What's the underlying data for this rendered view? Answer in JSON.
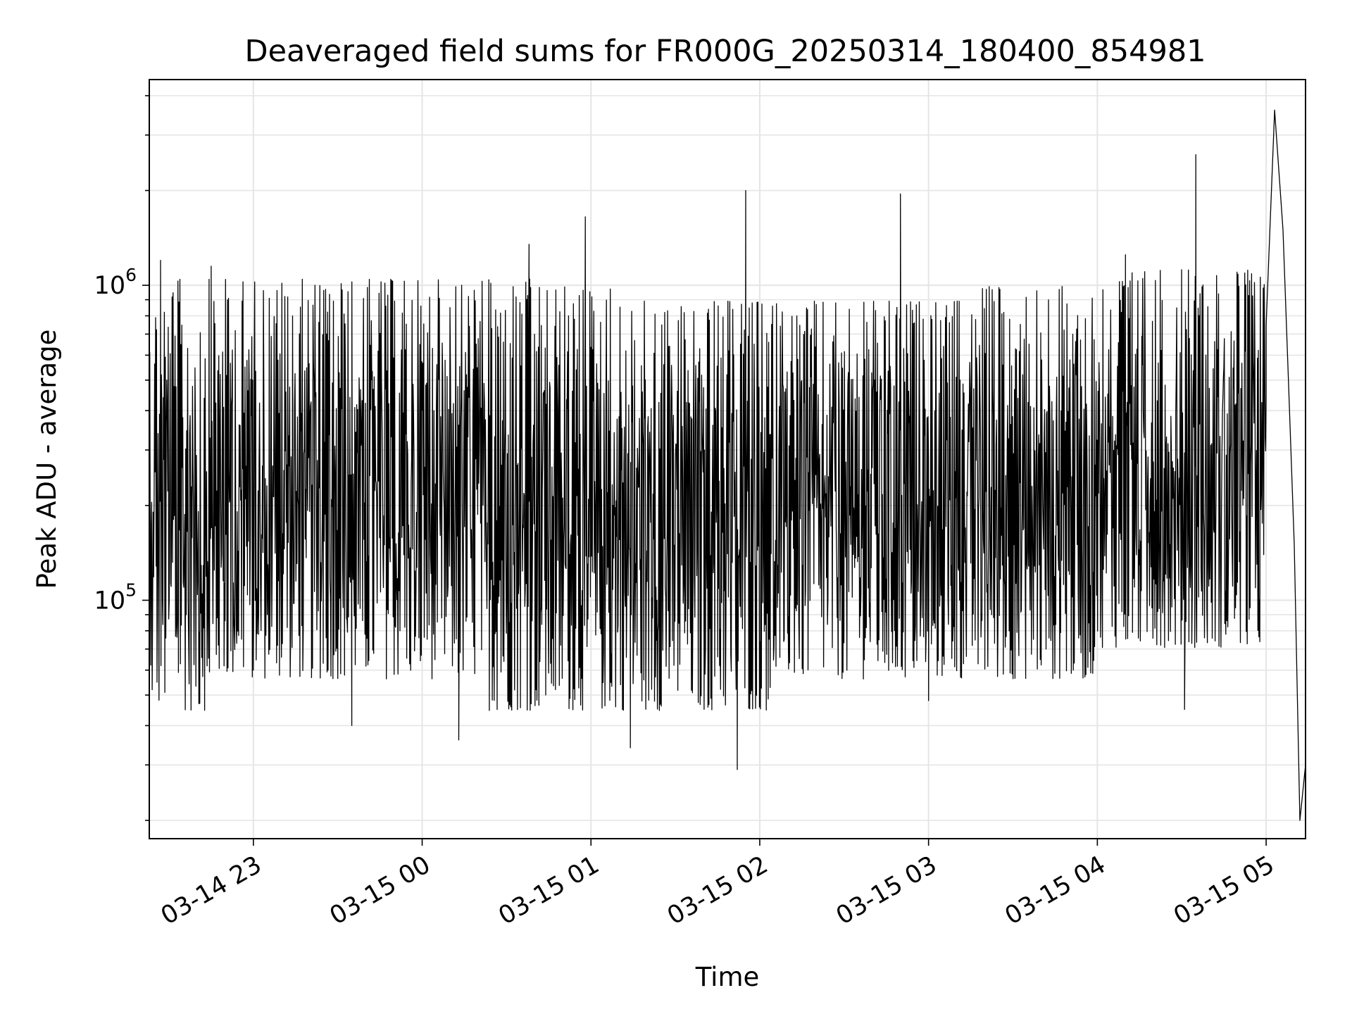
{
  "chart_data": {
    "type": "line",
    "title": "Deaveraged field sums for FR000G_20250314_180400_854981",
    "xlabel": "Time",
    "ylabel": "Peak ADU - average",
    "yscale": "log",
    "ylim": [
      17500,
      4500000
    ],
    "xlim": [
      "2025-03-14 22:23",
      "2025-03-15 05:14"
    ],
    "grid": true,
    "legend": "none",
    "line_color": "#000000",
    "grid_color": "#e5e5e5",
    "x_ticks": [
      {
        "t": "2025-03-14 23:00",
        "label": "03-14 23"
      },
      {
        "t": "2025-03-15 00:00",
        "label": "03-15 00"
      },
      {
        "t": "2025-03-15 01:00",
        "label": "03-15 01"
      },
      {
        "t": "2025-03-15 02:00",
        "label": "03-15 02"
      },
      {
        "t": "2025-03-15 03:00",
        "label": "03-15 03"
      },
      {
        "t": "2025-03-15 04:00",
        "label": "03-15 04"
      },
      {
        "t": "2025-03-15 05:00",
        "label": "03-15 05"
      }
    ],
    "y_ticks": [
      {
        "value": 100000,
        "base": "10",
        "exp": "5"
      },
      {
        "value": 1000000,
        "base": "10",
        "exp": "6"
      }
    ],
    "series": [
      {
        "values_sample": [
          {
            "t": "2025-03-14 22:23",
            "y": 140000
          },
          {
            "t": "2025-03-14 22:27",
            "y": 1200000
          },
          {
            "t": "2025-03-14 22:45",
            "y": 1150000
          },
          {
            "t": "2025-03-14 23:00",
            "y": 60000
          },
          {
            "t": "2025-03-14 23:35",
            "y": 40000
          },
          {
            "t": "2025-03-15 00:13",
            "y": 36000
          },
          {
            "t": "2025-03-15 00:38",
            "y": 1350000
          },
          {
            "t": "2025-03-15 00:58",
            "y": 1650000
          },
          {
            "t": "2025-03-15 01:14",
            "y": 34000
          },
          {
            "t": "2025-03-15 01:52",
            "y": 29000
          },
          {
            "t": "2025-03-15 01:55",
            "y": 2000000
          },
          {
            "t": "2025-03-15 02:50",
            "y": 1950000
          },
          {
            "t": "2025-03-15 03:00",
            "y": 48000
          },
          {
            "t": "2025-03-15 04:10",
            "y": 1250000
          },
          {
            "t": "2025-03-15 04:31",
            "y": 45000
          },
          {
            "t": "2025-03-15 04:35",
            "y": 2600000
          },
          {
            "t": "2025-03-15 05:00",
            "y": 750000
          },
          {
            "t": "2025-03-15 05:03",
            "y": 3600000
          },
          {
            "t": "2025-03-15 05:06",
            "y": 1500000
          },
          {
            "t": "2025-03-15 05:08",
            "y": 480000
          },
          {
            "t": "2025-03-15 05:10",
            "y": 150000
          },
          {
            "t": "2025-03-15 05:12",
            "y": 20000
          },
          {
            "t": "2025-03-15 05:14",
            "y": 30000
          }
        ]
      }
    ]
  }
}
